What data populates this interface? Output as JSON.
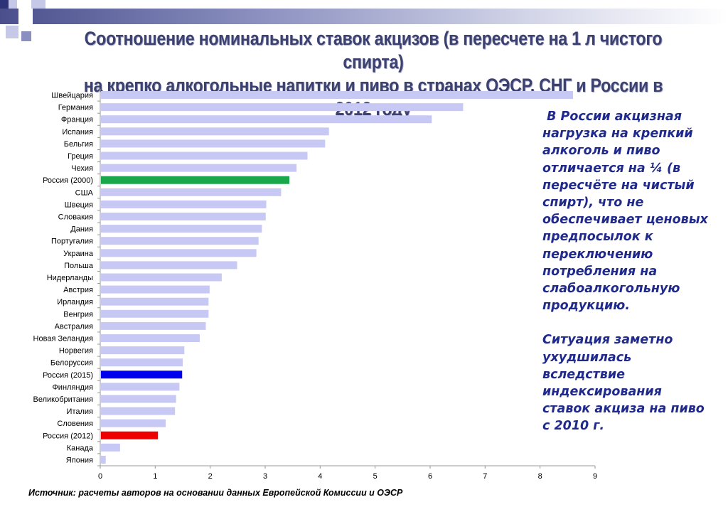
{
  "title": {
    "line1": "Соотношение номинальных ставок акцизов (в пересчете на 1 л чистого спирта)",
    "line2": "на крепко алкогольные напитки и пиво в странах ОЭСР, СНГ и России в 2012 году"
  },
  "side_text": {
    "paragraph1": " В России акцизная нагрузка на крепкий алкоголь и пиво отличается на ¼ (в пересчёте на чистый спирт), что не обеспечивает ценовых предпосылок к переключению потребления на слабоалкогольную продукцию.",
    "paragraph2": "Ситуация заметно ухудшилась вследствие индексирования ставок акциза на пиво с 2010 г."
  },
  "source": "Источник: расчеты авторов на основании данных Европейской Комиссии и  ОЭСР",
  "colors": {
    "default_bar": "#c8c8f5",
    "russia_2000": "#1aa64a",
    "russia_2015": "#0000ee",
    "russia_2012": "#ee0000",
    "title": "#3d4170",
    "side_text": "#1f2a8c"
  },
  "chart_data": {
    "type": "bar",
    "orientation": "horizontal",
    "xlim": [
      0,
      9
    ],
    "xticks": [
      0,
      1,
      2,
      3,
      4,
      5,
      6,
      7,
      8,
      9
    ],
    "grid": false,
    "categories": [
      "Швейцария",
      "Германия",
      "Франция",
      "Испания",
      "Бельгия",
      "Греция",
      "Чехия",
      "Россия (2000)",
      "США",
      "Швеция",
      "Словакия",
      "Дания",
      "Португалия",
      "Украина",
      "Польша",
      "Нидерланды",
      "Австрия",
      "Ирландия",
      "Венгрия",
      "Австралия",
      "Новая Зеландия",
      "Норвегия",
      "Белоруссия",
      "Россия (2015)",
      "Финляндия",
      "Великобритания",
      "Италия",
      "Словения",
      "Россия (2012)",
      "Канада",
      "Япония"
    ],
    "values": [
      8.6,
      6.6,
      6.03,
      4.16,
      4.09,
      3.77,
      3.57,
      3.44,
      3.29,
      3.02,
      3.01,
      2.94,
      2.88,
      2.84,
      2.49,
      2.21,
      1.99,
      1.97,
      1.97,
      1.92,
      1.81,
      1.53,
      1.5,
      1.49,
      1.44,
      1.38,
      1.36,
      1.19,
      1.05,
      0.36,
      0.1
    ],
    "highlight": {
      "Россия (2000)": "russia_2000",
      "Россия (2015)": "russia_2015",
      "Россия (2012)": "russia_2012"
    }
  }
}
